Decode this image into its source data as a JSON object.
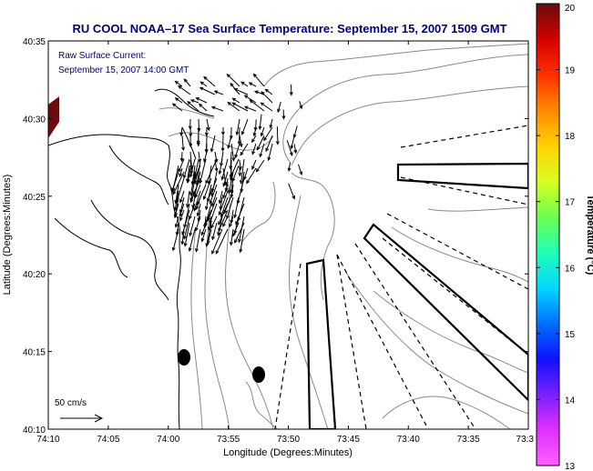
{
  "title": "RU COOL  NOAA–17  Sea Surface Temperature:  September 15, 2007 1509 GMT",
  "current_label": {
    "line1": "Raw Surface Current:",
    "line2": "September 15, 2007 14:00 GMT"
  },
  "scale_label": "50 cm/s",
  "axes": {
    "xlabel": "Longitude (Degrees:Minutes)",
    "ylabel": "Latitude (Degrees:Minutes)",
    "x_ticks": [
      "74:10",
      "74:05",
      "74:00",
      "73:55",
      "73:50",
      "73:45",
      "73:40",
      "73:35",
      "73:3"
    ],
    "y_ticks": [
      "40:35",
      "40:30",
      "40:25",
      "40:20",
      "40:15",
      "40:10"
    ]
  },
  "colorbar": {
    "label": "Temperature (°C)",
    "ticks": [
      "20",
      "19",
      "18",
      "17",
      "16",
      "15",
      "14",
      "13"
    ],
    "colors": [
      "#6b0b0b",
      "#d40000",
      "#ff3000",
      "#ff8a00",
      "#ffd200",
      "#d8ff20",
      "#6cff50",
      "#20ffb8",
      "#00d8ff",
      "#0070ff",
      "#1010ff",
      "#7a20ff",
      "#e030ff",
      "#ff60ff"
    ]
  },
  "colors": {
    "title": "#000080",
    "annotation": "#000080",
    "coast": "#000000",
    "bathymetry": "#8a8a8a",
    "vectors": "#000000"
  }
}
